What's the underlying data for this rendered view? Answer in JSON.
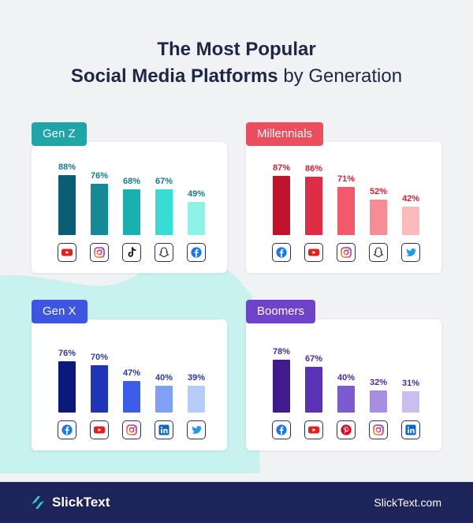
{
  "title": {
    "line1": "The Most Popular",
    "line2_bold": "Social Media Platforms",
    "line2_rest": " by Generation"
  },
  "footer": {
    "brand": "SlickText",
    "site": "SlickText.com"
  },
  "chart_data": [
    {
      "type": "bar",
      "title": "Gen Z",
      "accent": "#1fa5a8",
      "categories": [
        "YouTube",
        "Instagram",
        "TikTok",
        "Snapchat",
        "Facebook"
      ],
      "icons": [
        "youtube-icon",
        "instagram-icon",
        "tiktok-icon",
        "snapchat-icon",
        "facebook-icon"
      ],
      "values": [
        88,
        76,
        68,
        67,
        49
      ],
      "labels": [
        "88%",
        "76%",
        "68%",
        "67%",
        "49%"
      ],
      "colors": [
        "#0b5c75",
        "#138a96",
        "#1bb0b0",
        "#36ddd0",
        "#8ff2e6"
      ],
      "label_color": "#137a8c",
      "ylim": [
        0,
        100
      ]
    },
    {
      "type": "bar",
      "title": "Millennials",
      "accent": "#ec4d5f",
      "categories": [
        "Facebook",
        "YouTube",
        "Instagram",
        "Snapchat",
        "Twitter"
      ],
      "icons": [
        "facebook-icon",
        "youtube-icon",
        "instagram-icon",
        "snapchat-icon",
        "twitter-icon"
      ],
      "values": [
        87,
        86,
        71,
        52,
        42
      ],
      "labels": [
        "87%",
        "86%",
        "71%",
        "52%",
        "42%"
      ],
      "colors": [
        "#c1122e",
        "#de2d45",
        "#f2596a",
        "#f88c95",
        "#fbb9be"
      ],
      "label_color": "#d0233a",
      "ylim": [
        0,
        100
      ]
    },
    {
      "type": "bar",
      "title": "Gen X",
      "accent": "#3d55e0",
      "categories": [
        "Facebook",
        "YouTube",
        "Instagram",
        "LinkedIn",
        "Twitter"
      ],
      "icons": [
        "facebook-icon",
        "youtube-icon",
        "instagram-icon",
        "linkedin-icon",
        "twitter-icon"
      ],
      "values": [
        76,
        70,
        47,
        40,
        39
      ],
      "labels": [
        "76%",
        "70%",
        "47%",
        "40%",
        "39%"
      ],
      "colors": [
        "#0b1a7a",
        "#1f35b8",
        "#3d5ce8",
        "#7fa0f4",
        "#b6cdfa"
      ],
      "label_color": "#2a3aa3",
      "ylim": [
        0,
        100
      ]
    },
    {
      "type": "bar",
      "title": "Boomers",
      "accent": "#6f43c9",
      "categories": [
        "Facebook",
        "YouTube",
        "Pinterest",
        "Instagram",
        "LinkedIn"
      ],
      "icons": [
        "facebook-icon",
        "youtube-icon",
        "pinterest-icon",
        "instagram-icon",
        "linkedin-icon"
      ],
      "values": [
        78,
        67,
        40,
        32,
        31
      ],
      "labels": [
        "78%",
        "67%",
        "40%",
        "32%",
        "31%"
      ],
      "colors": [
        "#3e1a8c",
        "#5a33b5",
        "#7c5ad0",
        "#a88ee2",
        "#ccbdef"
      ],
      "label_color": "#4b2aa0",
      "ylim": [
        0,
        100
      ]
    }
  ]
}
